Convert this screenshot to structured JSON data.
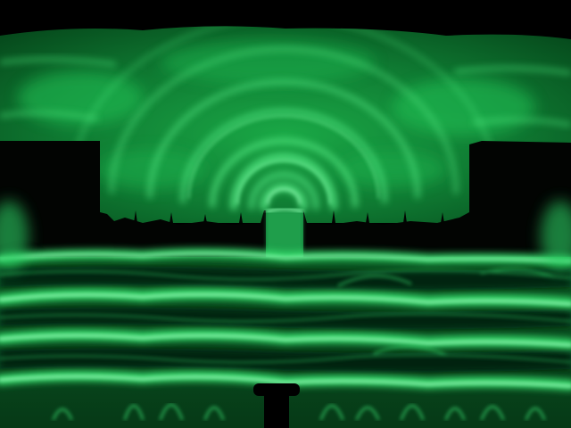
{
  "scene": {
    "palette": {
      "background": "#000000",
      "glow": "#1fd35a",
      "glow_bright": "#6cff98",
      "glow_dim": "#0c5a25",
      "barrier": "#020402"
    }
  }
}
